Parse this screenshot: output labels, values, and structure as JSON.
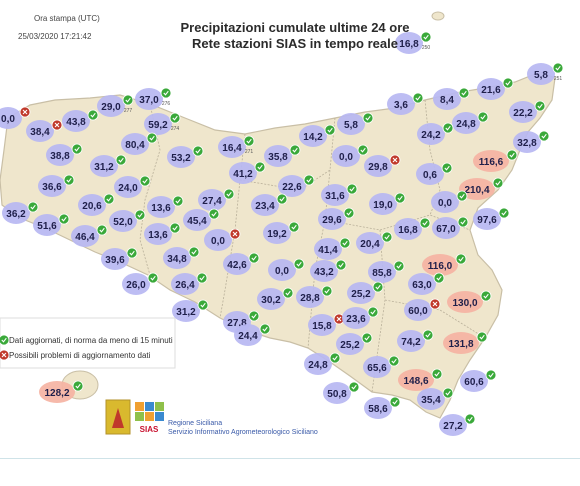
{
  "header": {
    "print_label": "Ora stampa (UTC)",
    "print_time": "25/03/2020 17:21:42",
    "title_line1": "Precipitazioni cumulate ultime 24 ore",
    "title_line2": "Rete stazioni SIAS in tempo reale"
  },
  "legend": {
    "ok_text": "Dati aggiornati, di norma da meno di 15 minuti",
    "warn_text": "Possibili problemi di aggiornamento dati"
  },
  "footer": {
    "org_line1": "Regione Siciliana",
    "org_line2": "Servizio Informativo Agrometeorologico Siciliano",
    "logo_text": "SIAS"
  },
  "colors": {
    "land": "#efe6cc",
    "coast": "#c9bfa6",
    "province_border": "#b9b09a",
    "blue_bubble": "#b7b7f2",
    "red_bubble": "#f5b3a3",
    "ok_marker": "#3aa93a",
    "warn_marker": "#c0392b"
  },
  "stations": [
    {
      "id": "250",
      "value": "16,8",
      "tone": "blue",
      "status": "ok"
    },
    {
      "id": "251",
      "value": "5,8",
      "tone": "blue",
      "status": "ok"
    },
    {
      "id": "277",
      "value": "29,0",
      "tone": "blue",
      "status": "ok"
    },
    {
      "id": "276",
      "value": "37,0",
      "tone": "blue",
      "status": "ok"
    },
    {
      "id": "",
      "value": "0,0",
      "tone": "blue",
      "status": "warn"
    },
    {
      "id": "",
      "value": "38,4",
      "tone": "blue",
      "status": "warn"
    },
    {
      "id": "",
      "value": "43,8",
      "tone": "blue",
      "status": "ok"
    },
    {
      "id": "274",
      "value": "59,2",
      "tone": "blue",
      "status": "ok"
    },
    {
      "id": "",
      "value": "3,6",
      "tone": "blue",
      "status": "ok"
    },
    {
      "id": "",
      "value": "8,4",
      "tone": "blue",
      "status": "ok"
    },
    {
      "id": "",
      "value": "21,6",
      "tone": "blue",
      "status": "ok"
    },
    {
      "id": "",
      "value": "22,2",
      "tone": "blue",
      "status": "ok"
    },
    {
      "id": "",
      "value": "24,8",
      "tone": "blue",
      "status": "ok"
    },
    {
      "id": "",
      "value": "24,2",
      "tone": "blue",
      "status": "ok"
    },
    {
      "id": "",
      "value": "5,8",
      "tone": "blue",
      "status": "ok"
    },
    {
      "id": "",
      "value": "14,2",
      "tone": "blue",
      "status": "ok"
    },
    {
      "id": "",
      "value": "32,8",
      "tone": "blue",
      "status": "ok"
    },
    {
      "id": "",
      "value": "38,8",
      "tone": "blue",
      "status": "ok"
    },
    {
      "id": "",
      "value": "80,4",
      "tone": "blue",
      "status": "ok"
    },
    {
      "id": "",
      "value": "53,2",
      "tone": "blue",
      "status": "ok"
    },
    {
      "id": "271",
      "value": "16,4",
      "tone": "blue",
      "status": "ok"
    },
    {
      "id": "",
      "value": "35,8",
      "tone": "blue",
      "status": "ok"
    },
    {
      "id": "",
      "value": "0,0",
      "tone": "blue",
      "status": "ok"
    },
    {
      "id": "",
      "value": "29,8",
      "tone": "blue",
      "status": "warn"
    },
    {
      "id": "",
      "value": "116,6",
      "tone": "red",
      "status": "ok"
    },
    {
      "id": "",
      "value": "31,2",
      "tone": "blue",
      "status": "ok"
    },
    {
      "id": "",
      "value": "41,2",
      "tone": "blue",
      "status": "ok"
    },
    {
      "id": "",
      "value": "0,6",
      "tone": "blue",
      "status": "ok"
    },
    {
      "id": "",
      "value": "36,6",
      "tone": "blue",
      "status": "ok"
    },
    {
      "id": "",
      "value": "24,0",
      "tone": "blue",
      "status": "ok"
    },
    {
      "id": "",
      "value": "22,6",
      "tone": "blue",
      "status": "ok"
    },
    {
      "id": "",
      "value": "31,6",
      "tone": "blue",
      "status": "ok"
    },
    {
      "id": "",
      "value": "210,4",
      "tone": "red",
      "status": "ok"
    },
    {
      "id": "",
      "value": "20,6",
      "tone": "blue",
      "status": "ok"
    },
    {
      "id": "",
      "value": "13,6",
      "tone": "blue",
      "status": "ok"
    },
    {
      "id": "",
      "value": "27,4",
      "tone": "blue",
      "status": "ok"
    },
    {
      "id": "",
      "value": "23,4",
      "tone": "blue",
      "status": "ok"
    },
    {
      "id": "",
      "value": "19,0",
      "tone": "blue",
      "status": "ok"
    },
    {
      "id": "",
      "value": "0,0",
      "tone": "blue",
      "status": "ok"
    },
    {
      "id": "",
      "value": "36,2",
      "tone": "blue",
      "status": "ok"
    },
    {
      "id": "",
      "value": "51,6",
      "tone": "blue",
      "status": "ok"
    },
    {
      "id": "",
      "value": "52,0",
      "tone": "blue",
      "status": "ok"
    },
    {
      "id": "",
      "value": "45,4",
      "tone": "blue",
      "status": "ok"
    },
    {
      "id": "",
      "value": "29,6",
      "tone": "blue",
      "status": "ok"
    },
    {
      "id": "",
      "value": "97,6",
      "tone": "blue",
      "status": "ok"
    },
    {
      "id": "",
      "value": "46,4",
      "tone": "blue",
      "status": "ok"
    },
    {
      "id": "",
      "value": "13,6",
      "tone": "blue",
      "status": "ok"
    },
    {
      "id": "",
      "value": "19,2",
      "tone": "blue",
      "status": "ok"
    },
    {
      "id": "",
      "value": "16,8",
      "tone": "blue",
      "status": "ok"
    },
    {
      "id": "",
      "value": "67,0",
      "tone": "blue",
      "status": "ok"
    },
    {
      "id": "",
      "value": "0,0",
      "tone": "blue",
      "status": "warn"
    },
    {
      "id": "",
      "value": "20,4",
      "tone": "blue",
      "status": "ok"
    },
    {
      "id": "",
      "value": "41,4",
      "tone": "blue",
      "status": "ok"
    },
    {
      "id": "",
      "value": "39,6",
      "tone": "blue",
      "status": "ok"
    },
    {
      "id": "",
      "value": "34,8",
      "tone": "blue",
      "status": "ok"
    },
    {
      "id": "",
      "value": "42,6",
      "tone": "blue",
      "status": "ok"
    },
    {
      "id": "",
      "value": "0,0",
      "tone": "blue",
      "status": "ok"
    },
    {
      "id": "",
      "value": "43,2",
      "tone": "blue",
      "status": "ok"
    },
    {
      "id": "",
      "value": "85,8",
      "tone": "blue",
      "status": "ok"
    },
    {
      "id": "",
      "value": "116,0",
      "tone": "red",
      "status": "ok"
    },
    {
      "id": "",
      "value": "26,0",
      "tone": "blue",
      "status": "ok"
    },
    {
      "id": "",
      "value": "26,4",
      "tone": "blue",
      "status": "ok"
    },
    {
      "id": "",
      "value": "63,0",
      "tone": "blue",
      "status": "ok"
    },
    {
      "id": "",
      "value": "25,2",
      "tone": "blue",
      "status": "ok"
    },
    {
      "id": "",
      "value": "130,0",
      "tone": "red",
      "status": "ok"
    },
    {
      "id": "",
      "value": "31,2",
      "tone": "blue",
      "status": "ok"
    },
    {
      "id": "",
      "value": "30,2",
      "tone": "blue",
      "status": "ok"
    },
    {
      "id": "",
      "value": "28,8",
      "tone": "blue",
      "status": "ok"
    },
    {
      "id": "",
      "value": "60,0",
      "tone": "blue",
      "status": "warn"
    },
    {
      "id": "",
      "value": "27,8",
      "tone": "blue",
      "status": "ok"
    },
    {
      "id": "",
      "value": "15,8",
      "tone": "blue",
      "status": "warn"
    },
    {
      "id": "",
      "value": "23,6",
      "tone": "blue",
      "status": "ok"
    },
    {
      "id": "",
      "value": "24,4",
      "tone": "blue",
      "status": "ok"
    },
    {
      "id": "",
      "value": "25,2",
      "tone": "blue",
      "status": "ok"
    },
    {
      "id": "",
      "value": "74,2",
      "tone": "blue",
      "status": "ok"
    },
    {
      "id": "",
      "value": "131,8",
      "tone": "red",
      "status": "ok"
    },
    {
      "id": "",
      "value": "24,8",
      "tone": "blue",
      "status": "ok"
    },
    {
      "id": "",
      "value": "65,6",
      "tone": "blue",
      "status": "ok"
    },
    {
      "id": "",
      "value": "128,2",
      "tone": "red",
      "status": "ok"
    },
    {
      "id": "",
      "value": "148,6",
      "tone": "red",
      "status": "ok"
    },
    {
      "id": "",
      "value": "60,6",
      "tone": "blue",
      "status": "ok"
    },
    {
      "id": "",
      "value": "50,8",
      "tone": "blue",
      "status": "ok"
    },
    {
      "id": "",
      "value": "58,6",
      "tone": "blue",
      "status": "ok"
    },
    {
      "id": "",
      "value": "35,4",
      "tone": "blue",
      "status": "ok"
    },
    {
      "id": "",
      "value": "27,2",
      "tone": "blue",
      "status": "ok"
    }
  ]
}
